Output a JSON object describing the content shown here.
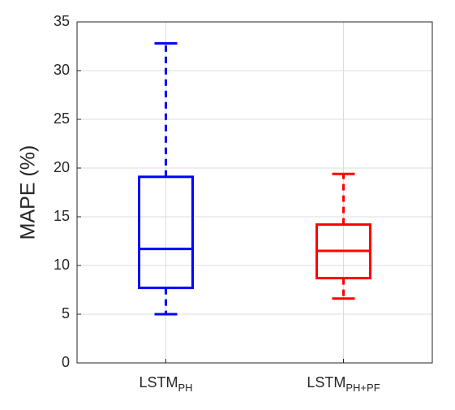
{
  "chart_data": {
    "type": "box",
    "y_label": "MAPE (%)",
    "categories": [
      "LSTM",
      "LSTM"
    ],
    "category_subscripts": [
      "PH",
      "PH+PF"
    ],
    "boxes": [
      {
        "min": 5.0,
        "q1": 7.7,
        "median": 11.7,
        "q3": 19.1,
        "max": 32.8,
        "color": "#0000ff"
      },
      {
        "min": 6.6,
        "q1": 8.7,
        "median": 11.5,
        "q3": 14.2,
        "max": 19.4,
        "color": "#ff0000"
      }
    ],
    "ylim": [
      0,
      35
    ],
    "yticks": [
      0,
      5,
      10,
      15,
      20,
      25,
      30,
      35
    ],
    "grid": true
  }
}
